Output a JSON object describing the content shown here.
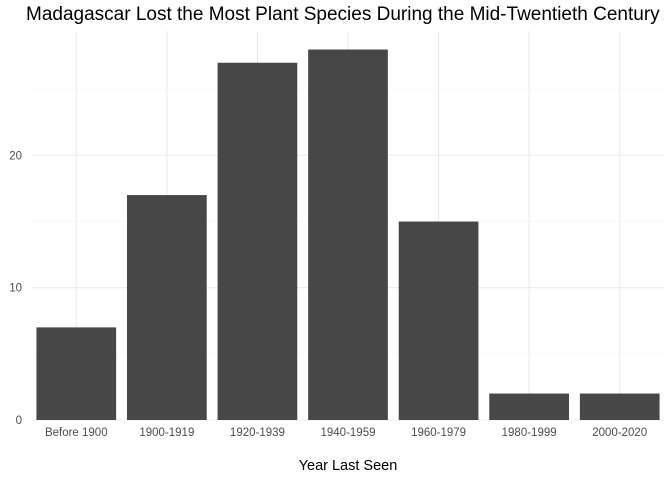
{
  "chart_data": {
    "type": "bar",
    "title": "Madagascar Lost the Most Plant Species During the Mid-Twentieth Century",
    "xlabel": "Year Last Seen",
    "ylabel": "",
    "categories": [
      "Before 1900",
      "1900-1919",
      "1920-1939",
      "1940-1959",
      "1960-1979",
      "1980-1999",
      "2000-2020"
    ],
    "values": [
      7,
      17,
      27,
      28,
      15,
      2,
      2
    ],
    "ylim": [
      0,
      29.4
    ],
    "yticks": [
      0,
      10,
      20
    ],
    "grid": true,
    "legend": "none",
    "colors": {
      "bar": "#474747",
      "grid_major": "#ebebeb",
      "grid_minor": "#f5f5f5"
    }
  }
}
